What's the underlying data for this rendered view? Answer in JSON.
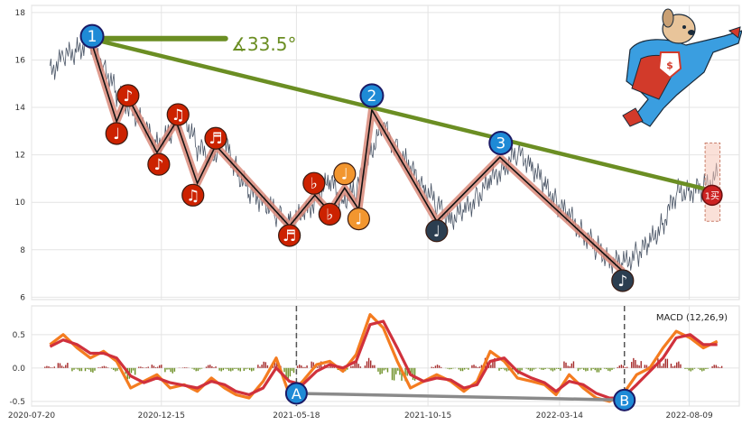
{
  "chart_data": [
    {
      "type": "line",
      "panel": "price",
      "ylim": [
        5.9,
        18.3
      ],
      "xlim": [
        "2020-07-20",
        "2022-10-05"
      ],
      "grid": true,
      "y_ticks": [
        "6",
        "8",
        "10",
        "12",
        "14",
        "16",
        "18"
      ],
      "x_ticks": [
        "2020-07-20",
        "2020-12-15",
        "2021-05-18",
        "2021-10-15",
        "2022-03-14",
        "2022-08-09"
      ],
      "series": [
        {
          "style": "thin-dark-line",
          "x": [
            "2020-08-10",
            "2020-08-25",
            "2020-09-10",
            "2020-09-25",
            "2020-10-10",
            "2020-10-25",
            "2020-11-10",
            "2020-11-25",
            "2020-12-10",
            "2020-12-25",
            "2021-01-10",
            "2021-01-25",
            "2021-02-10",
            "2021-02-25",
            "2021-03-10",
            "2021-03-25",
            "2021-04-10",
            "2021-04-25",
            "2021-05-10",
            "2021-05-25",
            "2021-06-10",
            "2021-06-25",
            "2021-07-10",
            "2021-07-25",
            "2021-08-10",
            "2021-08-25",
            "2021-09-10",
            "2021-09-25",
            "2021-10-10",
            "2021-10-25",
            "2021-11-10",
            "2021-11-25",
            "2021-12-10",
            "2021-12-25",
            "2022-01-10",
            "2022-01-25",
            "2022-02-10",
            "2022-02-25",
            "2022-03-10",
            "2022-03-25",
            "2022-04-10",
            "2022-04-25",
            "2022-05-10",
            "2022-05-25",
            "2022-06-10",
            "2022-06-25",
            "2022-07-10",
            "2022-07-25",
            "2022-08-10",
            "2022-08-25",
            "2022-09-10"
          ],
          "y": [
            15.5,
            16.1,
            16.4,
            16.8,
            15.8,
            14.6,
            14.0,
            13.2,
            12.4,
            12.9,
            13.7,
            12.3,
            11.9,
            12.6,
            11.4,
            10.4,
            10.1,
            9.5,
            9.2,
            9.4,
            10.2,
            10.9,
            10.1,
            10.5,
            12.1,
            13.2,
            12.2,
            11.4,
            10.7,
            9.9,
            9.3,
            9.6,
            10.2,
            10.9,
            11.5,
            12.1,
            11.6,
            10.7,
            10.0,
            9.4,
            8.7,
            8.1,
            7.6,
            7.4,
            7.8,
            8.3,
            9.1,
            10.4,
            10.5,
            10.6,
            11.1
          ]
        }
      ]
    },
    {
      "type": "line",
      "panel": "macd",
      "title": "MACD (12,26,9)",
      "ylim": [
        -0.57,
        0.93
      ],
      "y_ticks": [
        "-0.5",
        "0.0",
        "0.5"
      ],
      "x_ticks": [
        "2020-07-20",
        "2020-12-15",
        "2021-05-18",
        "2021-10-15",
        "2022-03-14",
        "2022-08-09"
      ],
      "series": [
        {
          "color": "#f47c20",
          "x": [
            "2020-08-10",
            "2020-08-25",
            "2020-09-10",
            "2020-09-25",
            "2020-10-10",
            "2020-10-25",
            "2020-11-10",
            "2020-11-25",
            "2020-12-10",
            "2020-12-25",
            "2021-01-10",
            "2021-01-25",
            "2021-02-10",
            "2021-02-25",
            "2021-03-10",
            "2021-03-25",
            "2021-04-10",
            "2021-04-25",
            "2021-05-10",
            "2021-05-25",
            "2021-06-10",
            "2021-06-25",
            "2021-07-10",
            "2021-07-25",
            "2021-08-10",
            "2021-08-25",
            "2021-09-10",
            "2021-09-25",
            "2021-10-10",
            "2021-10-25",
            "2021-11-10",
            "2021-11-25",
            "2021-12-10",
            "2021-12-25",
            "2022-01-10",
            "2022-01-25",
            "2022-02-10",
            "2022-02-25",
            "2022-03-10",
            "2022-03-25",
            "2022-04-10",
            "2022-04-25",
            "2022-05-10",
            "2022-05-25",
            "2022-06-10",
            "2022-06-25",
            "2022-07-10",
            "2022-07-25",
            "2022-08-10",
            "2022-08-25",
            "2022-09-10"
          ],
          "y": [
            0.35,
            0.5,
            0.3,
            0.15,
            0.25,
            0.1,
            -0.3,
            -0.2,
            -0.1,
            -0.3,
            -0.25,
            -0.35,
            -0.15,
            -0.3,
            -0.4,
            -0.45,
            -0.2,
            0.15,
            -0.4,
            -0.2,
            0.05,
            0.1,
            -0.05,
            0.2,
            0.8,
            0.6,
            0.1,
            -0.3,
            -0.2,
            -0.1,
            -0.2,
            -0.35,
            -0.2,
            0.25,
            0.1,
            -0.15,
            -0.2,
            -0.25,
            -0.4,
            -0.1,
            -0.3,
            -0.45,
            -0.5,
            -0.4,
            -0.1,
            0.0,
            0.3,
            0.55,
            0.45,
            0.3,
            0.4
          ]
        },
        {
          "color": "#d0313c",
          "x": [
            "2020-08-10",
            "2020-08-25",
            "2020-09-10",
            "2020-09-25",
            "2020-10-10",
            "2020-10-25",
            "2020-11-10",
            "2020-11-25",
            "2020-12-10",
            "2020-12-25",
            "2021-01-10",
            "2021-01-25",
            "2021-02-10",
            "2021-02-25",
            "2021-03-10",
            "2021-03-25",
            "2021-04-10",
            "2021-04-25",
            "2021-05-10",
            "2021-05-25",
            "2021-06-10",
            "2021-06-25",
            "2021-07-10",
            "2021-07-25",
            "2021-08-10",
            "2021-08-25",
            "2021-09-10",
            "2021-09-25",
            "2021-10-10",
            "2021-10-25",
            "2021-11-10",
            "2021-11-25",
            "2021-12-10",
            "2021-12-25",
            "2022-01-10",
            "2022-01-25",
            "2022-02-10",
            "2022-02-25",
            "2022-03-10",
            "2022-03-25",
            "2022-04-10",
            "2022-04-25",
            "2022-05-10",
            "2022-05-25",
            "2022-06-10",
            "2022-06-25",
            "2022-07-10",
            "2022-07-25",
            "2022-08-10",
            "2022-08-25",
            "2022-09-10"
          ],
          "y": [
            0.32,
            0.42,
            0.35,
            0.22,
            0.22,
            0.15,
            -0.12,
            -0.22,
            -0.15,
            -0.22,
            -0.26,
            -0.3,
            -0.2,
            -0.25,
            -0.35,
            -0.4,
            -0.3,
            0.0,
            -0.2,
            -0.25,
            -0.05,
            0.05,
            0.0,
            0.1,
            0.65,
            0.7,
            0.3,
            -0.1,
            -0.2,
            -0.15,
            -0.18,
            -0.3,
            -0.25,
            0.1,
            0.15,
            -0.05,
            -0.15,
            -0.22,
            -0.35,
            -0.2,
            -0.25,
            -0.38,
            -0.45,
            -0.45,
            -0.25,
            -0.05,
            0.15,
            0.45,
            0.5,
            0.35,
            0.35
          ]
        }
      ],
      "histogram": {
        "positive_color": "#a52a2a",
        "negative_color": "#6b8e23",
        "x": [
          "2020-08-10",
          "2020-08-25",
          "2020-09-10",
          "2020-09-25",
          "2020-10-10",
          "2020-10-25",
          "2020-11-10",
          "2020-11-25",
          "2020-12-10",
          "2020-12-25",
          "2021-01-10",
          "2021-01-25",
          "2021-02-10",
          "2021-02-25",
          "2021-03-10",
          "2021-03-25",
          "2021-04-10",
          "2021-04-25",
          "2021-05-10",
          "2021-05-25",
          "2021-06-10",
          "2021-06-25",
          "2021-07-10",
          "2021-07-25",
          "2021-08-10",
          "2021-08-25",
          "2021-09-10",
          "2021-09-25",
          "2021-10-10",
          "2021-10-25",
          "2021-11-10",
          "2021-11-25",
          "2021-12-10",
          "2021-12-25",
          "2022-01-10",
          "2022-01-25",
          "2022-02-10",
          "2022-02-25",
          "2022-03-10",
          "2022-03-25",
          "2022-04-10",
          "2022-04-25",
          "2022-05-10",
          "2022-05-25",
          "2022-06-10",
          "2022-06-25",
          "2022-07-10",
          "2022-07-25",
          "2022-08-10",
          "2022-08-25",
          "2022-09-10"
        ],
        "y": [
          0.03,
          0.08,
          -0.05,
          -0.07,
          0.03,
          -0.05,
          -0.18,
          0.02,
          0.05,
          -0.08,
          0.01,
          -0.05,
          0.05,
          -0.05,
          -0.05,
          -0.05,
          0.1,
          0.15,
          -0.2,
          0.05,
          0.1,
          0.05,
          -0.05,
          0.1,
          0.15,
          -0.1,
          -0.2,
          -0.2,
          0.0,
          0.05,
          -0.02,
          -0.05,
          0.05,
          0.15,
          -0.05,
          -0.1,
          -0.05,
          -0.03,
          -0.05,
          0.1,
          -0.05,
          -0.07,
          -0.05,
          0.05,
          0.15,
          0.05,
          0.15,
          0.1,
          -0.05,
          -0.05,
          0.05
        ]
      }
    }
  ],
  "annotations": {
    "peak_labels": [
      "1",
      "2",
      "3"
    ],
    "angle_label": "∡33.5°",
    "trend_color": "#6b8e23",
    "zigzag": {
      "points": [
        {
          "x": "2020-09-25",
          "y": 16.9
        },
        {
          "x": "2020-10-25",
          "y": 13.4
        },
        {
          "x": "2020-11-06",
          "y": 14.5
        },
        {
          "x": "2020-12-10",
          "y": 12.1
        },
        {
          "x": "2021-01-01",
          "y": 13.4
        },
        {
          "x": "2021-01-25",
          "y": 10.8
        },
        {
          "x": "2021-02-15",
          "y": 12.4
        },
        {
          "x": "2021-05-10",
          "y": 9.0
        },
        {
          "x": "2021-06-08",
          "y": 10.3
        },
        {
          "x": "2021-06-25",
          "y": 9.6
        },
        {
          "x": "2021-07-12",
          "y": 10.6
        },
        {
          "x": "2021-07-28",
          "y": 9.7
        },
        {
          "x": "2021-08-12",
          "y": 13.9
        },
        {
          "x": "2021-10-25",
          "y": 9.2
        },
        {
          "x": "2022-01-05",
          "y": 11.9
        },
        {
          "x": "2022-05-25",
          "y": 7.1
        }
      ]
    },
    "trend_line": [
      {
        "x": "2020-09-25",
        "y": 16.9
      },
      {
        "x": "2022-09-03",
        "y": 10.5
      }
    ],
    "flat_line": [
      {
        "x": "2020-09-25",
        "y": 16.9
      },
      {
        "x": "2021-02-26",
        "y": 16.9
      }
    ],
    "buy_box": {
      "x0": "2022-08-27",
      "x1": "2022-09-13",
      "y0": 9.2,
      "y1": 12.5
    },
    "buy_marker": {
      "x": "2022-09-04",
      "y": 10.3,
      "label": "1买"
    },
    "peak_markers": [
      {
        "x": "2020-09-27",
        "y": 17.0,
        "label": "1"
      },
      {
        "x": "2021-08-12",
        "y": 14.5,
        "label": "2"
      },
      {
        "x": "2022-01-06",
        "y": 12.5,
        "label": "3"
      }
    ],
    "music_markers": [
      {
        "x": "2020-10-25",
        "y": 12.9,
        "glyph": "♩",
        "color": "#cc2200"
      },
      {
        "x": "2020-11-07",
        "y": 14.5,
        "glyph": "♪",
        "color": "#cc2200"
      },
      {
        "x": "2020-12-12",
        "y": 11.6,
        "glyph": "♪",
        "color": "#cc2200"
      },
      {
        "x": "2021-01-03",
        "y": 13.7,
        "glyph": "♫",
        "color": "#cc2200"
      },
      {
        "x": "2021-01-20",
        "y": 10.3,
        "glyph": "♫",
        "color": "#cc2200"
      },
      {
        "x": "2021-02-15",
        "y": 12.7,
        "glyph": "♬",
        "color": "#cc2200"
      },
      {
        "x": "2021-05-10",
        "y": 8.6,
        "glyph": "♬",
        "color": "#cc2200"
      },
      {
        "x": "2021-06-07",
        "y": 10.8,
        "glyph": "♭",
        "color": "#cc2200"
      },
      {
        "x": "2021-06-25",
        "y": 9.5,
        "glyph": "♭",
        "color": "#cc2200"
      },
      {
        "x": "2021-07-12",
        "y": 11.2,
        "glyph": "♩",
        "color": "#f2962f"
      },
      {
        "x": "2021-07-28",
        "y": 9.3,
        "glyph": "♩",
        "color": "#f2962f"
      },
      {
        "x": "2021-10-25",
        "y": 8.8,
        "glyph": "♩",
        "color": "#2b3e50"
      },
      {
        "x": "2022-05-25",
        "y": 6.7,
        "glyph": "♪",
        "color": "#2b3e50"
      }
    ],
    "macd_points": [
      {
        "x": "2021-05-18",
        "y": -0.38,
        "label": "A"
      },
      {
        "x": "2022-05-27",
        "y": -0.48,
        "label": "B"
      }
    ],
    "macd_vlines": [
      "2021-05-18",
      "2022-05-27"
    ]
  }
}
